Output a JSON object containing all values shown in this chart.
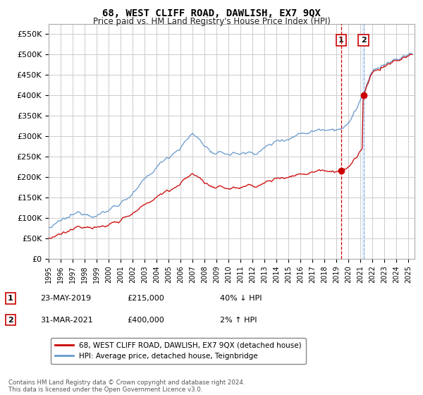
{
  "title": "68, WEST CLIFF ROAD, DAWLISH, EX7 9QX",
  "subtitle": "Price paid vs. HM Land Registry's House Price Index (HPI)",
  "ylim": [
    0,
    575000
  ],
  "yticks": [
    0,
    50000,
    100000,
    150000,
    200000,
    250000,
    300000,
    350000,
    400000,
    450000,
    500000,
    550000
  ],
  "ytick_labels": [
    "£0",
    "£50K",
    "£100K",
    "£150K",
    "£200K",
    "£250K",
    "£300K",
    "£350K",
    "£400K",
    "£450K",
    "£500K",
    "£550K"
  ],
  "xmin": 1995.0,
  "xmax": 2025.5,
  "legend_label_red": "68, WEST CLIFF ROAD, DAWLISH, EX7 9QX (detached house)",
  "legend_label_blue": "HPI: Average price, detached house, Teignbridge",
  "event1_label": "1",
  "event1_date": "23-MAY-2019",
  "event1_price": "£215,000",
  "event1_hpi": "40% ↓ HPI",
  "event1_x": 2019.39,
  "event1_y": 215000,
  "event2_label": "2",
  "event2_date": "31-MAR-2021",
  "event2_price": "£400,000",
  "event2_hpi": "2% ↑ HPI",
  "event2_x": 2021.25,
  "event2_y": 400000,
  "footer": "Contains HM Land Registry data © Crown copyright and database right 2024.\nThis data is licensed under the Open Government Licence v3.0.",
  "red_color": "#cc0000",
  "blue_color": "#6699cc",
  "background_color": "#ffffff",
  "grid_color": "#cccccc",
  "event_box_color": "#cc0000",
  "shade_color": "#ddeeff"
}
